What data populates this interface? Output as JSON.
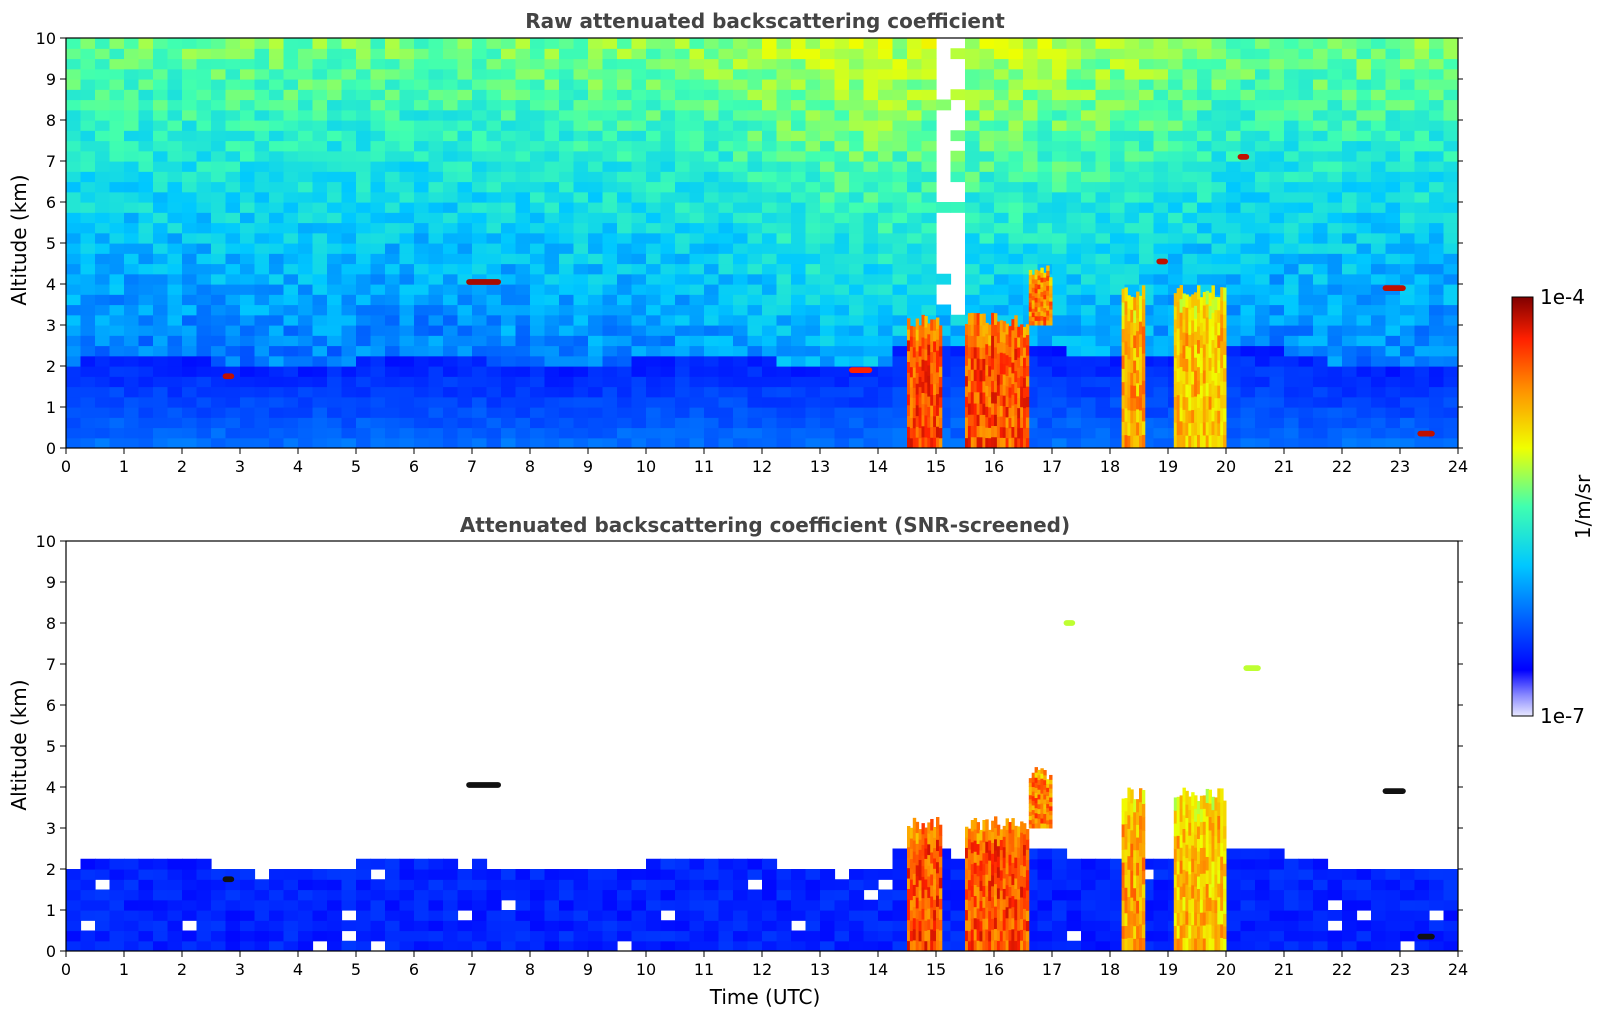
{
  "chart_data": [
    {
      "type": "heatmap",
      "title": "Raw attenuated backscattering coefficient",
      "xlabel": "",
      "ylabel": "Altitude (km)",
      "xlim": [
        0,
        24
      ],
      "ylim": [
        0,
        10
      ],
      "x_ticks": [
        "0",
        "1",
        "2",
        "3",
        "4",
        "5",
        "6",
        "7",
        "8",
        "9",
        "10",
        "11",
        "12",
        "13",
        "14",
        "15",
        "16",
        "17",
        "18",
        "19",
        "20",
        "21",
        "22",
        "23",
        "24"
      ],
      "y_ticks": [
        "0",
        "1",
        "2",
        "3",
        "4",
        "5",
        "6",
        "7",
        "8",
        "9",
        "10"
      ],
      "screened": false,
      "features": [
        {
          "kind": "column",
          "t0": 14.5,
          "t1": 15.1,
          "z0": 0,
          "z1": 3.3,
          "level": 0.85
        },
        {
          "kind": "column",
          "t0": 15.5,
          "t1": 16.6,
          "z0": 0,
          "z1": 3.3,
          "level": 0.85
        },
        {
          "kind": "column",
          "t0": 16.6,
          "t1": 17.0,
          "z0": 3.0,
          "z1": 4.5,
          "level": 0.8
        },
        {
          "kind": "column",
          "t0": 18.2,
          "t1": 18.6,
          "z0": 0,
          "z1": 4.0,
          "level": 0.75
        },
        {
          "kind": "column",
          "t0": 19.1,
          "t1": 20.0,
          "z0": 0,
          "z1": 4.0,
          "level": 0.72
        },
        {
          "kind": "layer",
          "t0": 6.9,
          "t1": 7.5,
          "z": 4.05,
          "level": 0.97
        },
        {
          "kind": "layer",
          "t0": 2.7,
          "t1": 2.9,
          "z": 1.75,
          "level": 0.95
        },
        {
          "kind": "layer",
          "t0": 22.7,
          "t1": 23.1,
          "z": 3.9,
          "level": 0.95
        },
        {
          "kind": "layer",
          "t0": 23.3,
          "t1": 23.6,
          "z": 0.35,
          "level": 0.95
        },
        {
          "kind": "layer",
          "t0": 18.8,
          "t1": 19.0,
          "z": 4.55,
          "level": 0.95
        },
        {
          "kind": "layer",
          "t0": 20.2,
          "t1": 20.4,
          "z": 7.1,
          "level": 0.95
        },
        {
          "kind": "layer",
          "t0": 13.5,
          "t1": 13.9,
          "z": 1.9,
          "level": 0.9
        }
      ]
    },
    {
      "type": "heatmap",
      "title": "Attenuated backscattering coefficient (SNR-screened)",
      "xlabel": "Time (UTC)",
      "ylabel": "Altitude (km)",
      "xlim": [
        0,
        24
      ],
      "ylim": [
        0,
        10
      ],
      "x_ticks": [
        "0",
        "1",
        "2",
        "3",
        "4",
        "5",
        "6",
        "7",
        "8",
        "9",
        "10",
        "11",
        "12",
        "13",
        "14",
        "15",
        "16",
        "17",
        "18",
        "19",
        "20",
        "21",
        "22",
        "23",
        "24"
      ],
      "y_ticks": [
        "0",
        "1",
        "2",
        "3",
        "4",
        "5",
        "6",
        "7",
        "8",
        "9",
        "10"
      ],
      "screened": true,
      "features": [
        {
          "kind": "column",
          "t0": 14.5,
          "t1": 15.1,
          "z0": 0,
          "z1": 3.3,
          "level": 0.85
        },
        {
          "kind": "column",
          "t0": 15.5,
          "t1": 16.6,
          "z0": 0,
          "z1": 3.3,
          "level": 0.85
        },
        {
          "kind": "column",
          "t0": 16.6,
          "t1": 17.0,
          "z0": 3.0,
          "z1": 4.5,
          "level": 0.8
        },
        {
          "kind": "column",
          "t0": 18.2,
          "t1": 18.6,
          "z0": 0,
          "z1": 4.0,
          "level": 0.75
        },
        {
          "kind": "column",
          "t0": 19.1,
          "t1": 20.0,
          "z0": 0,
          "z1": 4.0,
          "level": 0.72
        },
        {
          "kind": "layer",
          "t0": 6.9,
          "t1": 7.5,
          "z": 4.05,
          "level": 0.02
        },
        {
          "kind": "layer",
          "t0": 2.7,
          "t1": 2.9,
          "z": 1.75,
          "level": 0.02
        },
        {
          "kind": "layer",
          "t0": 22.7,
          "t1": 23.1,
          "z": 3.9,
          "level": 0.02
        },
        {
          "kind": "layer",
          "t0": 23.3,
          "t1": 23.6,
          "z": 0.35,
          "level": 0.02
        },
        {
          "kind": "layer",
          "t0": 17.2,
          "t1": 17.4,
          "z": 8.0,
          "level": 0.6
        },
        {
          "kind": "layer",
          "t0": 20.3,
          "t1": 20.6,
          "z": 6.9,
          "level": 0.6
        }
      ]
    }
  ],
  "colorbar": {
    "max_label": "1e-4",
    "min_label": "1e-7",
    "label": "1/m/sr",
    "colormap": "jet"
  }
}
